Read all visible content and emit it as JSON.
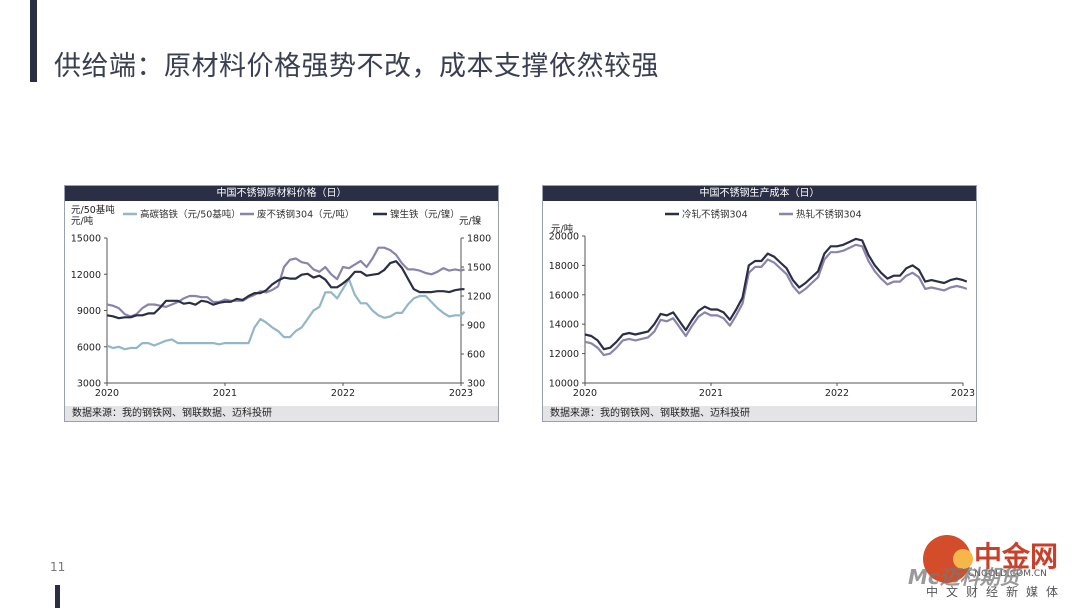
{
  "slide": {
    "title": "供给端：原材料价格强势不改，成本支撑依然较强",
    "page_number": "11"
  },
  "watermark": {
    "brand": "中金网",
    "domain": "CNGOLD.COM.CN",
    "tagline": "中文财经新媒体",
    "overlay": "Mc迈科期货"
  },
  "colors": {
    "dark_navy": "#2b2f45",
    "purple_gray": "#8a84ad",
    "light_teal": "#93b7c8",
    "footer_bg": "#e4e4e6"
  },
  "chart_data": [
    {
      "type": "line",
      "title": "中国不锈钢原材料价格（日）",
      "source": "数据来源：我的钢铁网、钢联数据、迈科投研",
      "y_left_unit": "元/50基吨\n元/吨",
      "y_left_unit_lines": [
        "元/50基吨",
        "元/吨"
      ],
      "y_right_unit": "元/镍",
      "ylim_left": [
        3000,
        15000
      ],
      "yticks_left": [
        3000,
        6000,
        9000,
        12000,
        15000
      ],
      "ylim_right": [
        300,
        1800
      ],
      "yticks_right": [
        300,
        600,
        900,
        1200,
        1500,
        1800
      ],
      "xlim": [
        2020,
        2023
      ],
      "xticks": [
        "2020",
        "2021",
        "2022",
        "2023"
      ],
      "legend_placement": "top",
      "series": [
        {
          "name": "高碳铬铁（元/50基吨）",
          "axis": "left",
          "color": "#93b7c8",
          "x": [
            2020.0,
            2020.05,
            2020.1,
            2020.15,
            2020.2,
            2020.25,
            2020.3,
            2020.35,
            2020.4,
            2020.45,
            2020.5,
            2020.55,
            2020.6,
            2020.65,
            2020.7,
            2020.75,
            2020.8,
            2020.85,
            2020.9,
            2020.95,
            2021.0,
            2021.05,
            2021.1,
            2021.15,
            2021.2,
            2021.25,
            2021.3,
            2021.35,
            2021.4,
            2021.45,
            2021.5,
            2021.55,
            2021.6,
            2021.65,
            2021.7,
            2021.75,
            2021.8,
            2021.85,
            2021.9,
            2021.95,
            2022.0,
            2022.05,
            2022.1,
            2022.15,
            2022.2,
            2022.25,
            2022.3,
            2022.35,
            2022.4,
            2022.45,
            2022.5,
            2022.55,
            2022.6,
            2022.65,
            2022.7,
            2022.75,
            2022.8,
            2022.85,
            2022.9,
            2022.95,
            2023.0,
            2023.03
          ],
          "values": [
            6100,
            5900,
            6000,
            5800,
            5900,
            5900,
            6300,
            6300,
            6100,
            6300,
            6500,
            6600,
            6300,
            6300,
            6300,
            6300,
            6300,
            6300,
            6300,
            6200,
            6300,
            6300,
            6300,
            6300,
            6300,
            7600,
            8300,
            8000,
            7600,
            7300,
            6800,
            6800,
            7300,
            7600,
            8300,
            9000,
            9300,
            10500,
            10500,
            10000,
            10800,
            11600,
            10300,
            9600,
            9600,
            9000,
            8600,
            8400,
            8500,
            8800,
            8800,
            9500,
            10000,
            10200,
            10200,
            9700,
            9200,
            8800,
            8500,
            8600,
            8600,
            8900
          ]
        },
        {
          "name": "废不锈钢304（元/吨）",
          "axis": "left",
          "color": "#8a84ad",
          "x": [
            2020.0,
            2020.05,
            2020.1,
            2020.15,
            2020.2,
            2020.25,
            2020.3,
            2020.35,
            2020.4,
            2020.45,
            2020.5,
            2020.55,
            2020.6,
            2020.65,
            2020.7,
            2020.75,
            2020.8,
            2020.85,
            2020.9,
            2020.95,
            2021.0,
            2021.05,
            2021.1,
            2021.15,
            2021.2,
            2021.25,
            2021.3,
            2021.35,
            2021.4,
            2021.45,
            2021.5,
            2021.55,
            2021.6,
            2021.65,
            2021.7,
            2021.75,
            2021.8,
            2021.85,
            2021.9,
            2021.95,
            2022.0,
            2022.05,
            2022.1,
            2022.15,
            2022.2,
            2022.25,
            2022.3,
            2022.35,
            2022.4,
            2022.45,
            2022.5,
            2022.55,
            2022.6,
            2022.65,
            2022.7,
            2022.75,
            2022.8,
            2022.85,
            2022.9,
            2022.95,
            2023.0,
            2023.03
          ],
          "values": [
            9500,
            9400,
            9200,
            8700,
            8500,
            8700,
            9200,
            9500,
            9500,
            9400,
            9300,
            9500,
            9700,
            10000,
            10200,
            10200,
            10100,
            10100,
            9700,
            9700,
            9900,
            9800,
            9800,
            9800,
            10100,
            10300,
            10600,
            10500,
            10700,
            11000,
            12600,
            13200,
            13300,
            13000,
            12900,
            12400,
            12200,
            12600,
            12000,
            11600,
            12600,
            12500,
            12800,
            13100,
            12600,
            13300,
            14200,
            14200,
            14000,
            13600,
            12900,
            12400,
            12400,
            12300,
            12100,
            12000,
            12200,
            12500,
            12300,
            12400,
            12300,
            12400
          ]
        },
        {
          "name": "镍生铁（元/镍）",
          "axis": "right",
          "color": "#2b2f45",
          "x": [
            2020.0,
            2020.05,
            2020.1,
            2020.15,
            2020.2,
            2020.25,
            2020.3,
            2020.35,
            2020.4,
            2020.45,
            2020.5,
            2020.55,
            2020.6,
            2020.65,
            2020.7,
            2020.75,
            2020.8,
            2020.85,
            2020.9,
            2020.95,
            2021.0,
            2021.05,
            2021.1,
            2021.15,
            2021.2,
            2021.25,
            2021.3,
            2021.35,
            2021.4,
            2021.45,
            2021.5,
            2021.55,
            2021.6,
            2021.65,
            2021.7,
            2021.75,
            2021.8,
            2021.85,
            2021.9,
            2021.95,
            2022.0,
            2022.05,
            2022.1,
            2022.15,
            2022.2,
            2022.25,
            2022.3,
            2022.35,
            2022.4,
            2022.45,
            2022.5,
            2022.55,
            2022.6,
            2022.65,
            2022.7,
            2022.75,
            2022.8,
            2022.85,
            2022.9,
            2022.95,
            2023.0,
            2023.03
          ],
          "values": [
            1000,
            990,
            970,
            980,
            980,
            1000,
            1000,
            1020,
            1020,
            1080,
            1150,
            1150,
            1150,
            1120,
            1130,
            1110,
            1150,
            1140,
            1110,
            1130,
            1140,
            1140,
            1170,
            1160,
            1200,
            1230,
            1230,
            1260,
            1320,
            1360,
            1390,
            1380,
            1380,
            1420,
            1430,
            1390,
            1410,
            1370,
            1290,
            1290,
            1330,
            1380,
            1450,
            1450,
            1410,
            1420,
            1430,
            1470,
            1540,
            1560,
            1490,
            1380,
            1270,
            1240,
            1240,
            1240,
            1250,
            1250,
            1240,
            1260,
            1270,
            1270
          ]
        }
      ]
    },
    {
      "type": "line",
      "title": "中国不锈钢生产成本（日）",
      "source": "数据来源：我的钢铁网、钢联数据、迈科投研",
      "y_unit": "元/吨",
      "ylim": [
        10000,
        20000
      ],
      "yticks": [
        10000,
        12000,
        14000,
        16000,
        18000,
        20000
      ],
      "xlim": [
        2020,
        2023
      ],
      "xticks": [
        "2020",
        "2021",
        "2022",
        "2023"
      ],
      "legend_placement": "top",
      "series": [
        {
          "name": "冷轧不锈钢304",
          "color": "#2b2f45",
          "x": [
            2020.0,
            2020.05,
            2020.1,
            2020.15,
            2020.2,
            2020.25,
            2020.3,
            2020.35,
            2020.4,
            2020.45,
            2020.5,
            2020.55,
            2020.6,
            2020.65,
            2020.7,
            2020.75,
            2020.8,
            2020.85,
            2020.9,
            2020.95,
            2021.0,
            2021.05,
            2021.1,
            2021.15,
            2021.2,
            2021.25,
            2021.3,
            2021.35,
            2021.4,
            2021.45,
            2021.5,
            2021.55,
            2021.6,
            2021.65,
            2021.7,
            2021.75,
            2021.8,
            2021.85,
            2021.9,
            2021.95,
            2022.0,
            2022.05,
            2022.1,
            2022.15,
            2022.2,
            2022.25,
            2022.3,
            2022.35,
            2022.4,
            2022.45,
            2022.5,
            2022.55,
            2022.6,
            2022.65,
            2022.7,
            2022.75,
            2022.8,
            2022.85,
            2022.9,
            2022.95,
            2023.0,
            2023.03
          ],
          "values": [
            13300,
            13200,
            12900,
            12300,
            12400,
            12800,
            13300,
            13400,
            13300,
            13400,
            13500,
            14000,
            14700,
            14600,
            14800,
            14200,
            13600,
            14300,
            14900,
            15200,
            15000,
            15000,
            14800,
            14300,
            15000,
            15800,
            18000,
            18300,
            18300,
            18800,
            18600,
            18200,
            17800,
            17000,
            16500,
            16800,
            17200,
            17600,
            18800,
            19300,
            19300,
            19400,
            19600,
            19800,
            19700,
            18700,
            18000,
            17500,
            17100,
            17300,
            17300,
            17800,
            18000,
            17700,
            16900,
            17000,
            16900,
            16800,
            17000,
            17100,
            17000,
            16900
          ]
        },
        {
          "name": "热轧不锈钢304",
          "color": "#8a84ad",
          "x": [
            2020.0,
            2020.05,
            2020.1,
            2020.15,
            2020.2,
            2020.25,
            2020.3,
            2020.35,
            2020.4,
            2020.45,
            2020.5,
            2020.55,
            2020.6,
            2020.65,
            2020.7,
            2020.75,
            2020.8,
            2020.85,
            2020.9,
            2020.95,
            2021.0,
            2021.05,
            2021.1,
            2021.15,
            2021.2,
            2021.25,
            2021.3,
            2021.35,
            2021.4,
            2021.45,
            2021.5,
            2021.55,
            2021.6,
            2021.65,
            2021.7,
            2021.75,
            2021.8,
            2021.85,
            2021.9,
            2021.95,
            2022.0,
            2022.05,
            2022.1,
            2022.15,
            2022.2,
            2022.25,
            2022.3,
            2022.35,
            2022.4,
            2022.45,
            2022.5,
            2022.55,
            2022.6,
            2022.65,
            2022.7,
            2022.75,
            2022.8,
            2022.85,
            2022.9,
            2022.95,
            2023.0,
            2023.03
          ],
          "values": [
            12800,
            12700,
            12400,
            11900,
            12000,
            12400,
            12900,
            13000,
            12900,
            13000,
            13100,
            13500,
            14300,
            14200,
            14400,
            13800,
            13200,
            13900,
            14500,
            14800,
            14600,
            14600,
            14400,
            13900,
            14600,
            15400,
            17500,
            17900,
            17900,
            18400,
            18200,
            17800,
            17400,
            16600,
            16100,
            16400,
            16800,
            17200,
            18400,
            18900,
            18900,
            19000,
            19200,
            19400,
            19300,
            18300,
            17600,
            17100,
            16700,
            16900,
            16900,
            17300,
            17500,
            17200,
            16400,
            16500,
            16400,
            16300,
            16500,
            16600,
            16500,
            16400
          ]
        }
      ]
    }
  ]
}
